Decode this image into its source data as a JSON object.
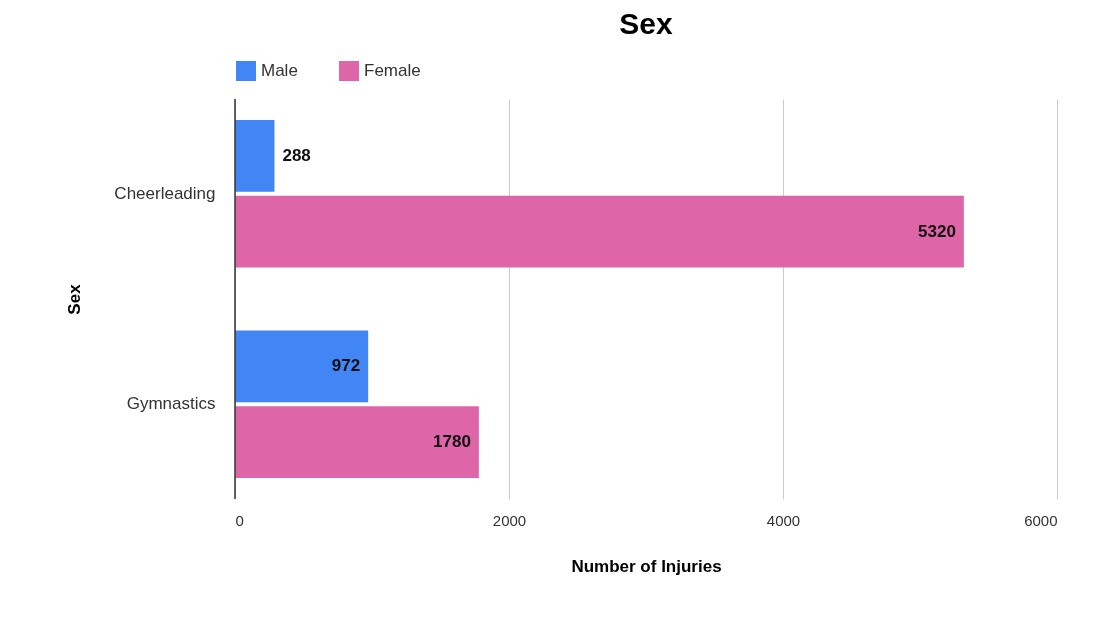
{
  "chart_data": {
    "type": "bar",
    "orientation": "horizontal",
    "title": "Sex",
    "xlabel": "Number of Injuries",
    "ylabel": "Sex",
    "categories": [
      "Cheerleading",
      "Gymnastics"
    ],
    "series": [
      {
        "name": "Male",
        "color": "#4285f4",
        "values": [
          288,
          972
        ]
      },
      {
        "name": "Female",
        "color": "#dd65a8",
        "values": [
          5320,
          1780
        ]
      }
    ],
    "xlim": [
      0,
      6000
    ],
    "xticks": [
      0,
      2000,
      4000,
      6000
    ],
    "grid": "x",
    "legend": "top",
    "data_labels": true
  }
}
